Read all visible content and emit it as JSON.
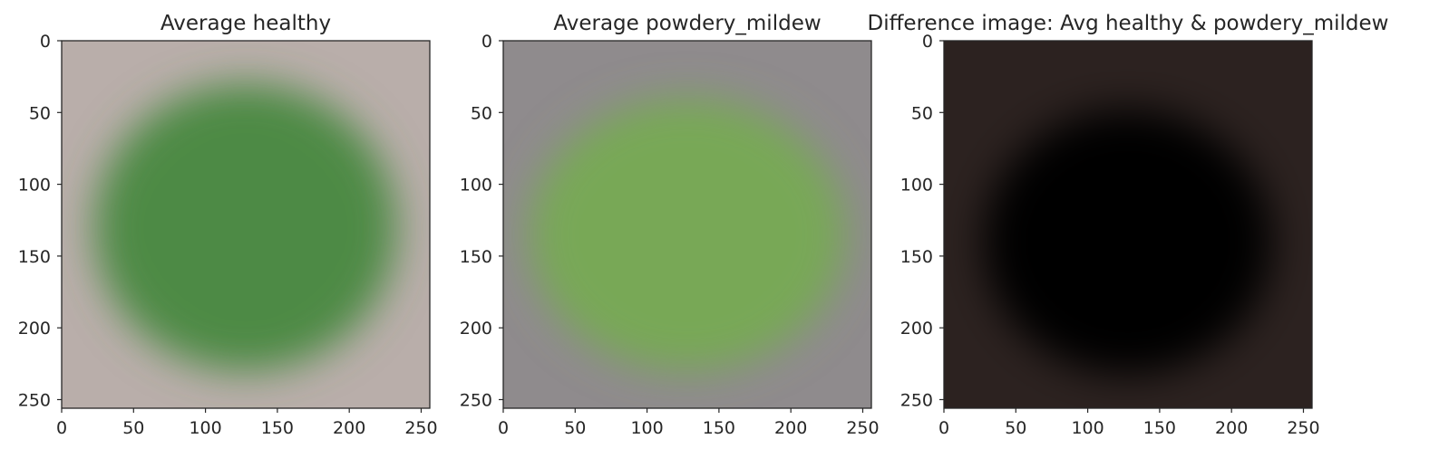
{
  "chart_data": [
    {
      "type": "heatmap",
      "title": "Average healthy",
      "xlim": [
        0,
        256
      ],
      "ylim": [
        256,
        0
      ],
      "xticks": [
        0,
        50,
        100,
        150,
        200,
        250
      ],
      "yticks": [
        0,
        50,
        100,
        150,
        200,
        250
      ],
      "background_color": "#b9aeaa",
      "blob_color": "#4e8a45",
      "blob_center": [
        128,
        130
      ],
      "blob_radius": [
        105,
        100
      ]
    },
    {
      "type": "heatmap",
      "title": "Average powdery_mildew",
      "xlim": [
        0,
        256
      ],
      "ylim": [
        256,
        0
      ],
      "xticks": [
        0,
        50,
        100,
        150,
        200,
        250
      ],
      "yticks": [
        0,
        50,
        100,
        150,
        200,
        250
      ],
      "background_color": "#8f8b8d",
      "blob_color": "#78a856",
      "blob_center": [
        128,
        135
      ],
      "blob_radius": [
        110,
        95
      ]
    },
    {
      "type": "heatmap",
      "title": "Difference image: Avg healthy & powdery_mildew",
      "xlim": [
        0,
        256
      ],
      "ylim": [
        256,
        0
      ],
      "xticks": [
        0,
        50,
        100,
        150,
        200,
        250
      ],
      "yticks": [
        0,
        50,
        100,
        150,
        200,
        250
      ],
      "background_color": "#2c2220",
      "blob_color": "#020203",
      "blob_center": [
        128,
        140
      ],
      "blob_radius": [
        100,
        92
      ]
    }
  ]
}
